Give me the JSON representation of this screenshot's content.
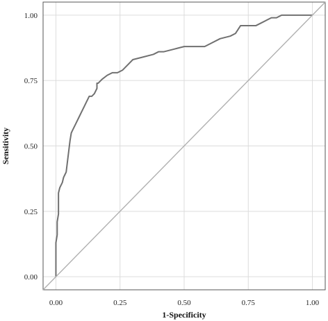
{
  "chart_data": {
    "type": "line",
    "title": "",
    "xlabel": "1-Specificity",
    "ylabel": "Sensitivity",
    "xlim": [
      -0.05,
      1.05
    ],
    "ylim": [
      -0.05,
      1.05
    ],
    "x_ticks": [
      "0.00",
      "0.25",
      "0.50",
      "0.75",
      "1.00"
    ],
    "y_ticks": [
      "0.00",
      "0.25",
      "0.50",
      "0.75",
      "1.00"
    ],
    "grid": true,
    "legend": "none",
    "colors": {
      "roc": "#707070",
      "reference": "#b0b0b0",
      "grid": "#dcdcdc",
      "frame": "#555555"
    },
    "series": [
      {
        "x": [
          0.0,
          0.0,
          0.0,
          0.005,
          0.005,
          0.01,
          0.01,
          0.015,
          0.015,
          0.02,
          0.02,
          0.025,
          0.03,
          0.035,
          0.04,
          0.045,
          0.05,
          0.055,
          0.06,
          0.065,
          0.07,
          0.075,
          0.08,
          0.09,
          0.1,
          0.11,
          0.12,
          0.13,
          0.14,
          0.15,
          0.16,
          0.16,
          0.165,
          0.17,
          0.18,
          0.2,
          0.22,
          0.24,
          0.26,
          0.28,
          0.3,
          0.34,
          0.38,
          0.4,
          0.42,
          0.46,
          0.5,
          0.54,
          0.58,
          0.6,
          0.64,
          0.68,
          0.7,
          0.72,
          0.74,
          0.78,
          0.8,
          0.82,
          0.84,
          0.86,
          0.88,
          0.9,
          0.92,
          0.95,
          1.0
        ],
        "y": [
          0.0,
          0.06,
          0.13,
          0.16,
          0.21,
          0.24,
          0.32,
          0.34,
          0.34,
          0.35,
          0.35,
          0.36,
          0.38,
          0.39,
          0.4,
          0.44,
          0.48,
          0.52,
          0.55,
          0.56,
          0.57,
          0.58,
          0.59,
          0.61,
          0.63,
          0.65,
          0.67,
          0.69,
          0.69,
          0.7,
          0.72,
          0.74,
          0.74,
          0.745,
          0.755,
          0.77,
          0.78,
          0.78,
          0.79,
          0.81,
          0.83,
          0.84,
          0.85,
          0.86,
          0.86,
          0.87,
          0.88,
          0.88,
          0.88,
          0.89,
          0.91,
          0.92,
          0.93,
          0.96,
          0.96,
          0.96,
          0.97,
          0.98,
          0.99,
          0.99,
          1.0,
          1.0,
          1.0,
          1.0,
          1.0
        ]
      },
      {
        "x": [
          -0.05,
          1.05
        ],
        "y": [
          -0.05,
          1.05
        ]
      }
    ]
  }
}
